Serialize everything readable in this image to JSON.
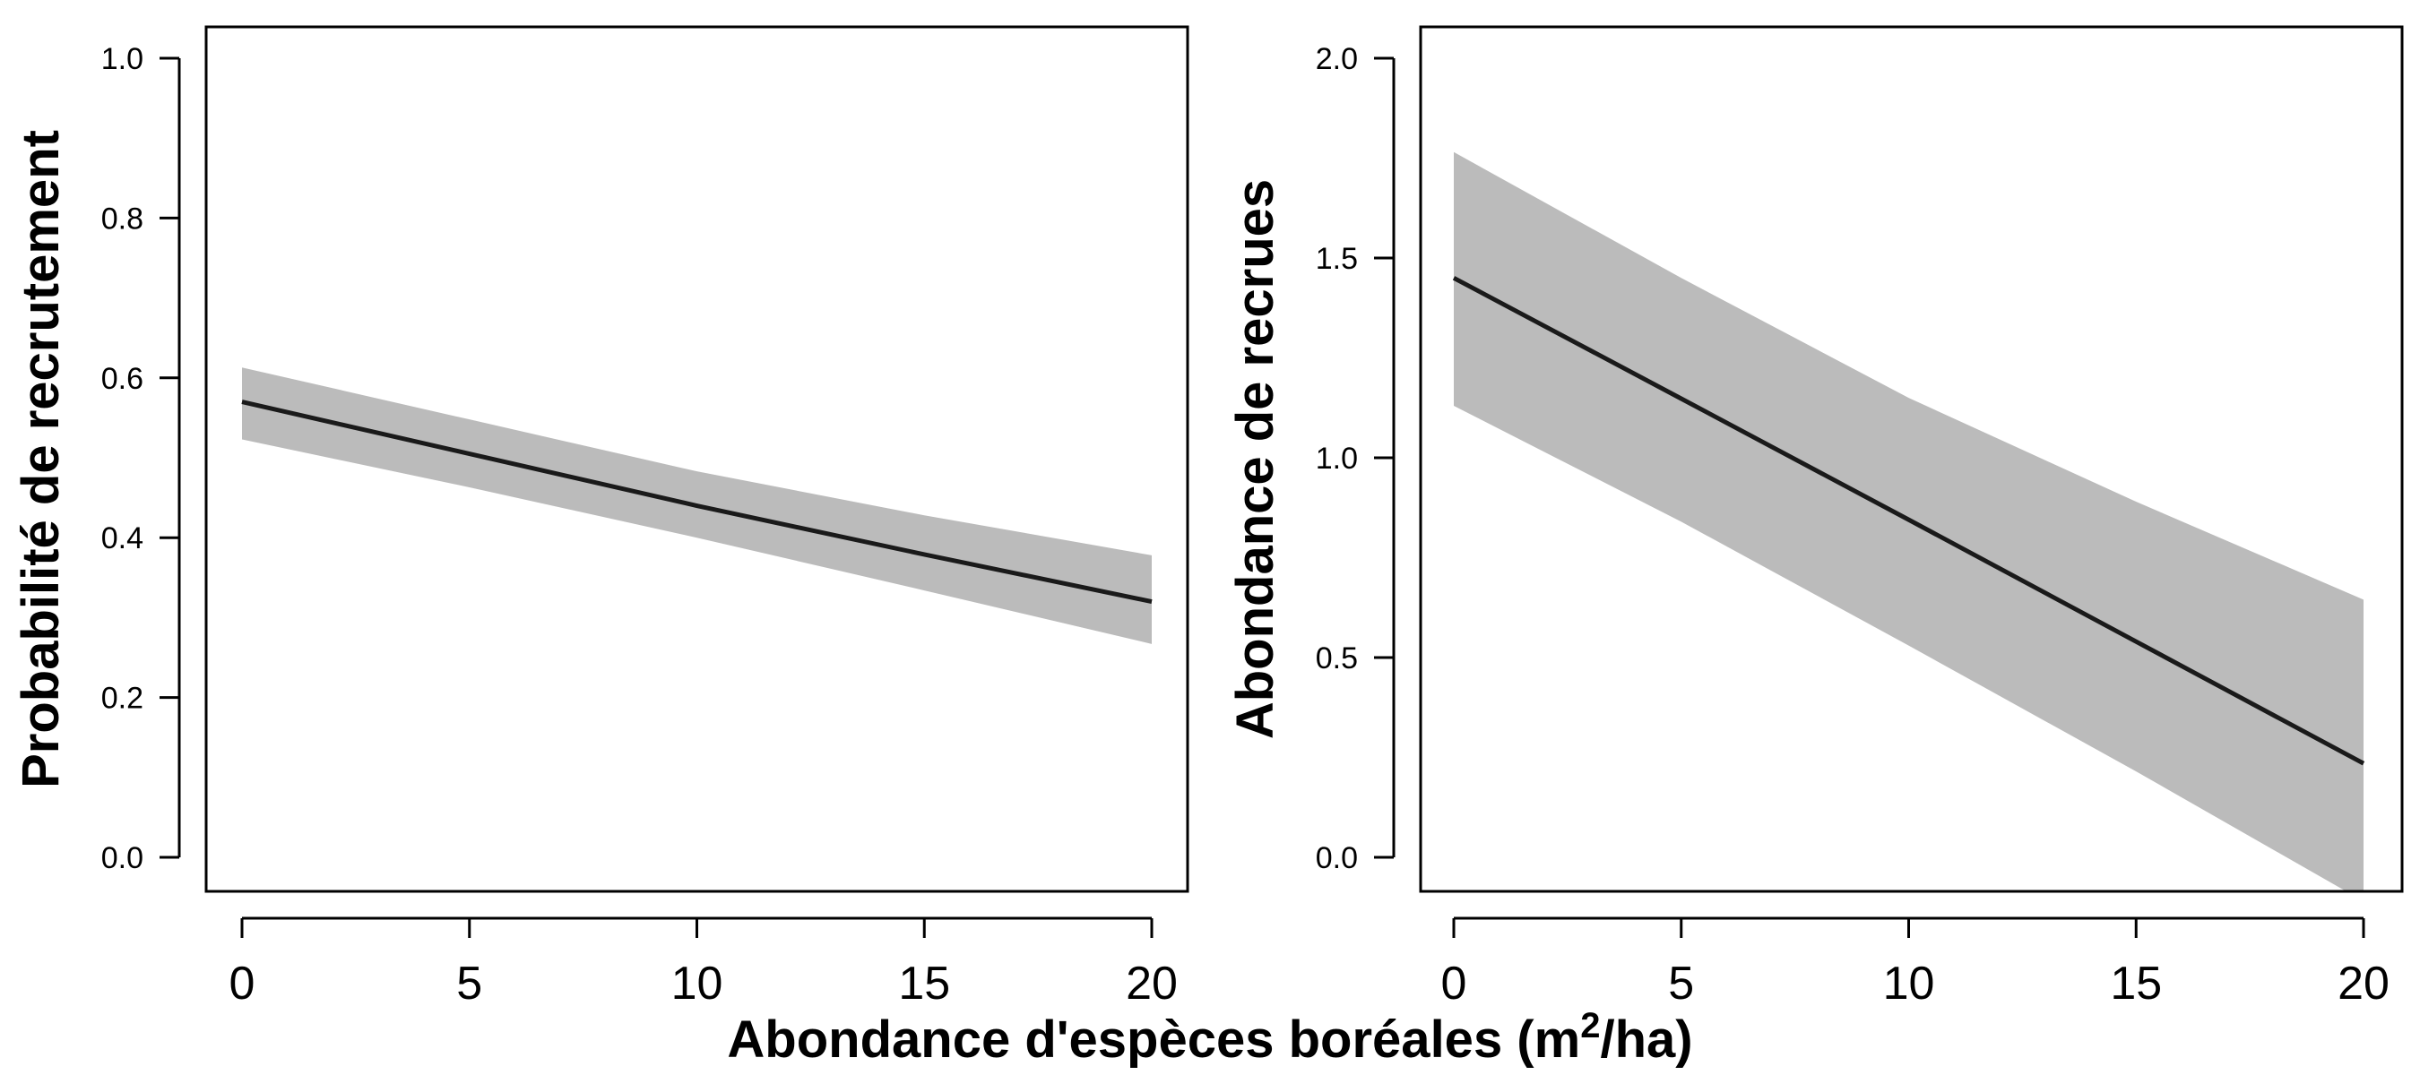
{
  "chart_data": [
    {
      "type": "line",
      "title": "",
      "xlabel": "",
      "ylabel": "Probabilité de recrutement",
      "xlim": [
        0,
        20
      ],
      "ylim": [
        0,
        1
      ],
      "x_ticks": [
        0,
        5,
        10,
        15,
        20
      ],
      "x_tick_labels": [
        "0",
        "5",
        "10",
        "15",
        "20"
      ],
      "y_ticks": [
        0,
        0.2,
        0.4,
        0.6,
        0.8,
        1.0
      ],
      "y_tick_labels": [
        "0.0",
        "0.2",
        "0.4",
        "0.6",
        "0.8",
        "1.0"
      ],
      "grid": false,
      "series": [
        {
          "x": [
            0,
            5,
            10,
            15,
            20
          ],
          "values": [
            0.57,
            0.505,
            0.44,
            0.379,
            0.32
          ],
          "lower": [
            0.523,
            0.463,
            0.4,
            0.334,
            0.267
          ],
          "upper": [
            0.613,
            0.548,
            0.483,
            0.428,
            0.378
          ],
          "color": "#1a1a1a",
          "band_color": "#bbbbbb"
        }
      ]
    },
    {
      "type": "line",
      "title": "",
      "xlabel": "",
      "ylabel": "Abondance de recrues",
      "xlim": [
        0,
        20
      ],
      "ylim": [
        0,
        2
      ],
      "x_ticks": [
        0,
        5,
        10,
        15,
        20
      ],
      "x_tick_labels": [
        "0",
        "5",
        "10",
        "15",
        "20"
      ],
      "y_ticks": [
        0,
        0.5,
        1.0,
        1.5,
        2.0
      ],
      "y_tick_labels": [
        "0.0",
        "0.5",
        "1.0",
        "1.5",
        "2.0"
      ],
      "grid": false,
      "series": [
        {
          "x": [
            0,
            5,
            10,
            15,
            20
          ],
          "values": [
            1.45,
            1.148,
            0.845,
            0.54,
            0.235
          ],
          "lower": [
            1.13,
            0.84,
            0.53,
            0.215,
            -0.11
          ],
          "upper": [
            1.765,
            1.45,
            1.15,
            0.89,
            0.645
          ],
          "color": "#1a1a1a",
          "band_color": "#bbbbbb"
        }
      ]
    }
  ],
  "shared_xlabel": {
    "main": "Abondance d'espèces boréales (m",
    "superscript": "2",
    "suffix": "/ha)"
  }
}
